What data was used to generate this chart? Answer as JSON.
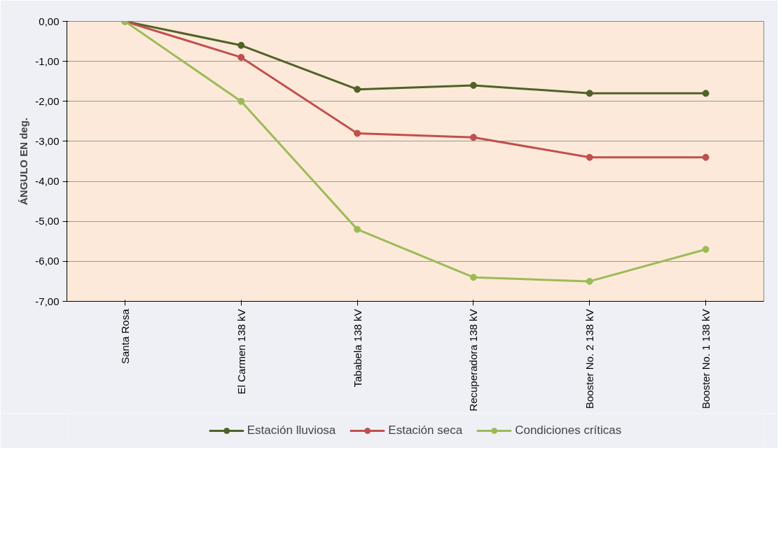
{
  "chart_data": {
    "type": "line",
    "ylabel": "ÁNGULO EN deg.",
    "categories": [
      "Santa Rosa",
      "El Carmen 138 kV",
      "Tababela 138 kV",
      "Recuperadora 138 kV",
      "Booster No. 2 138 kV",
      "Booster No. 1 138 kV"
    ],
    "series": [
      {
        "name": "Estación lluviosa",
        "color": "#4f6228",
        "values": [
          0,
          -0.6,
          -1.7,
          -1.6,
          -1.8,
          -1.8
        ]
      },
      {
        "name": "Estación seca",
        "color": "#c0504d",
        "values": [
          0,
          -0.9,
          -2.8,
          -2.9,
          -3.4,
          -3.4
        ]
      },
      {
        "name": "Condiciones críticas",
        "color": "#9bbb59",
        "values": [
          0,
          -2.0,
          -5.2,
          -6.4,
          -6.5,
          -5.7
        ]
      }
    ],
    "ylim": [
      -7,
      0
    ],
    "yticks": [
      {
        "value": 0,
        "label": "0,00"
      },
      {
        "value": -1,
        "label": "-1,00"
      },
      {
        "value": -2,
        "label": "-2,00"
      },
      {
        "value": -3,
        "label": "-3,00"
      },
      {
        "value": -4,
        "label": "-4,00"
      },
      {
        "value": -5,
        "label": "-5,00"
      },
      {
        "value": -6,
        "label": "-6,00"
      },
      {
        "value": -7,
        "label": "-7,00"
      }
    ],
    "grid": "y",
    "legend": "bottom",
    "marker": "circle",
    "line_style": "solid"
  }
}
